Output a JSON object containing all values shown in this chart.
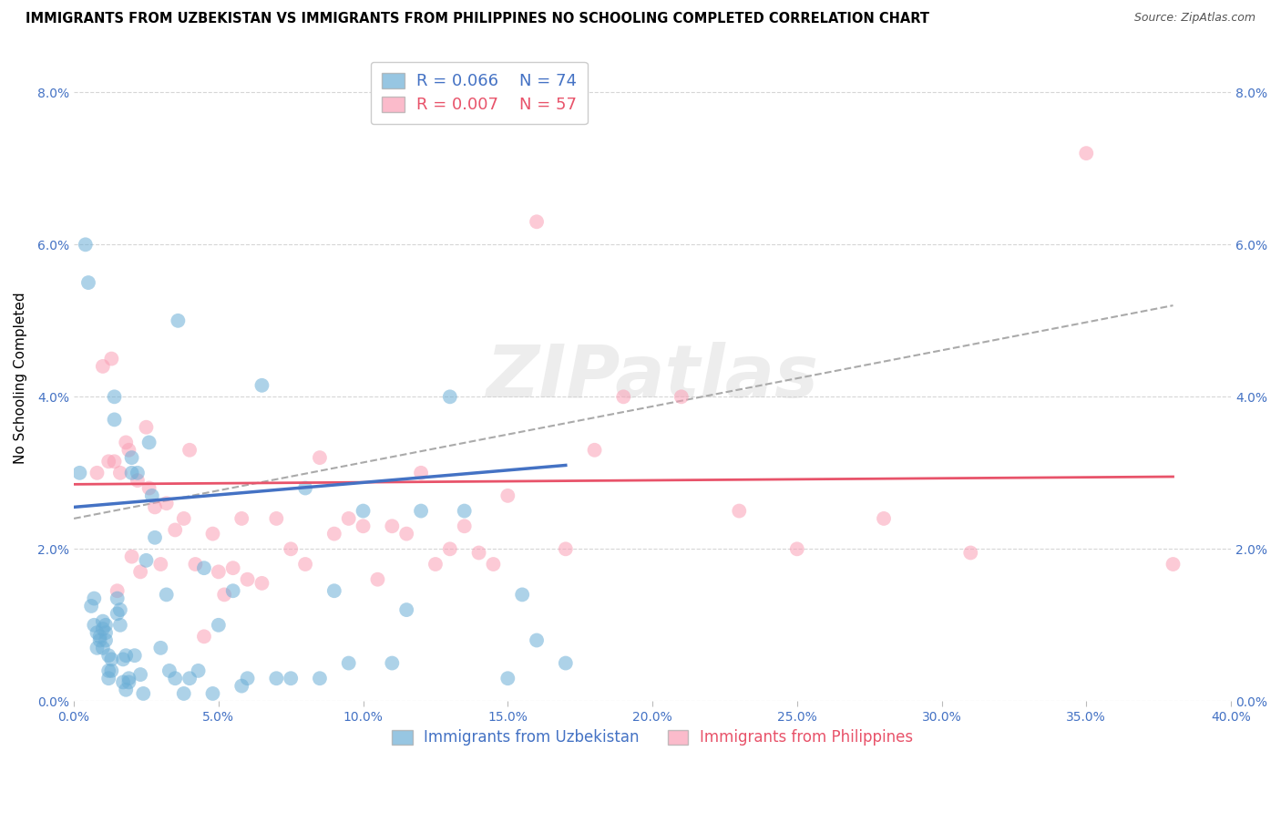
{
  "title": "IMMIGRANTS FROM UZBEKISTAN VS IMMIGRANTS FROM PHILIPPINES NO SCHOOLING COMPLETED CORRELATION CHART",
  "source": "Source: ZipAtlas.com",
  "ylabel": "No Schooling Completed",
  "xlim": [
    0.0,
    0.4
  ],
  "ylim": [
    0.0,
    0.085
  ],
  "xticks": [
    0.0,
    0.05,
    0.1,
    0.15,
    0.2,
    0.25,
    0.3,
    0.35,
    0.4
  ],
  "yticks": [
    0.0,
    0.02,
    0.04,
    0.06,
    0.08
  ],
  "xtick_labels": [
    "0.0%",
    "5.0%",
    "10.0%",
    "15.0%",
    "20.0%",
    "25.0%",
    "30.0%",
    "35.0%",
    "40.0%"
  ],
  "ytick_labels": [
    "0.0%",
    "2.0%",
    "4.0%",
    "6.0%",
    "8.0%"
  ],
  "uzb_color": "#6baed6",
  "phi_color": "#fa9fb5",
  "uzb_label": "Immigrants from Uzbekistan",
  "phi_label": "Immigrants from Philippines",
  "legend_R_uzb": "R = 0.066",
  "legend_N_uzb": "N = 74",
  "legend_R_phi": "R = 0.007",
  "legend_N_phi": "N = 57",
  "uzb_scatter_x": [
    0.002,
    0.004,
    0.005,
    0.006,
    0.007,
    0.007,
    0.008,
    0.008,
    0.009,
    0.009,
    0.01,
    0.01,
    0.01,
    0.011,
    0.011,
    0.011,
    0.012,
    0.012,
    0.012,
    0.013,
    0.013,
    0.014,
    0.014,
    0.015,
    0.015,
    0.016,
    0.016,
    0.017,
    0.017,
    0.018,
    0.018,
    0.019,
    0.019,
    0.02,
    0.02,
    0.021,
    0.022,
    0.023,
    0.024,
    0.025,
    0.026,
    0.027,
    0.028,
    0.03,
    0.032,
    0.033,
    0.035,
    0.036,
    0.038,
    0.04,
    0.043,
    0.045,
    0.048,
    0.05,
    0.055,
    0.058,
    0.06,
    0.065,
    0.07,
    0.075,
    0.08,
    0.085,
    0.09,
    0.095,
    0.1,
    0.11,
    0.115,
    0.12,
    0.13,
    0.135,
    0.15,
    0.155,
    0.16,
    0.17
  ],
  "uzb_scatter_y": [
    0.03,
    0.06,
    0.055,
    0.0125,
    0.0135,
    0.01,
    0.009,
    0.007,
    0.008,
    0.0085,
    0.0095,
    0.0105,
    0.007,
    0.008,
    0.009,
    0.01,
    0.003,
    0.004,
    0.006,
    0.004,
    0.0055,
    0.037,
    0.04,
    0.0115,
    0.0135,
    0.01,
    0.012,
    0.0055,
    0.0025,
    0.006,
    0.0015,
    0.0025,
    0.003,
    0.03,
    0.032,
    0.006,
    0.03,
    0.0035,
    0.001,
    0.0185,
    0.034,
    0.027,
    0.0215,
    0.007,
    0.014,
    0.004,
    0.003,
    0.05,
    0.001,
    0.003,
    0.004,
    0.0175,
    0.001,
    0.01,
    0.0145,
    0.002,
    0.003,
    0.0415,
    0.003,
    0.003,
    0.028,
    0.003,
    0.0145,
    0.005,
    0.025,
    0.005,
    0.012,
    0.025,
    0.04,
    0.025,
    0.003,
    0.014,
    0.008,
    0.005
  ],
  "phi_scatter_x": [
    0.008,
    0.01,
    0.012,
    0.013,
    0.014,
    0.015,
    0.016,
    0.018,
    0.019,
    0.02,
    0.022,
    0.023,
    0.025,
    0.026,
    0.028,
    0.03,
    0.032,
    0.035,
    0.038,
    0.04,
    0.042,
    0.045,
    0.048,
    0.05,
    0.052,
    0.055,
    0.058,
    0.06,
    0.065,
    0.07,
    0.075,
    0.08,
    0.085,
    0.09,
    0.095,
    0.1,
    0.105,
    0.11,
    0.115,
    0.12,
    0.125,
    0.13,
    0.135,
    0.14,
    0.145,
    0.15,
    0.16,
    0.17,
    0.18,
    0.19,
    0.21,
    0.23,
    0.25,
    0.28,
    0.31,
    0.35,
    0.38
  ],
  "phi_scatter_y": [
    0.03,
    0.044,
    0.0315,
    0.045,
    0.0315,
    0.0145,
    0.03,
    0.034,
    0.033,
    0.019,
    0.029,
    0.017,
    0.036,
    0.028,
    0.0255,
    0.018,
    0.026,
    0.0225,
    0.024,
    0.033,
    0.018,
    0.0085,
    0.022,
    0.017,
    0.014,
    0.0175,
    0.024,
    0.016,
    0.0155,
    0.024,
    0.02,
    0.018,
    0.032,
    0.022,
    0.024,
    0.023,
    0.016,
    0.023,
    0.022,
    0.03,
    0.018,
    0.02,
    0.023,
    0.0195,
    0.018,
    0.027,
    0.063,
    0.02,
    0.033,
    0.04,
    0.04,
    0.025,
    0.02,
    0.024,
    0.0195,
    0.072,
    0.018
  ],
  "uzb_trend_x": [
    0.0,
    0.17
  ],
  "uzb_trend_y": [
    0.0255,
    0.031
  ],
  "phi_trend_x": [
    0.0,
    0.38
  ],
  "phi_trend_y": [
    0.0285,
    0.0295
  ],
  "dash_trend_x": [
    0.0,
    0.38
  ],
  "dash_trend_y": [
    0.024,
    0.052
  ],
  "watermark": "ZIPatlas",
  "axis_color": "#4472c4",
  "phi_line_color": "#e8536a",
  "uzb_line_color": "#4472c4"
}
